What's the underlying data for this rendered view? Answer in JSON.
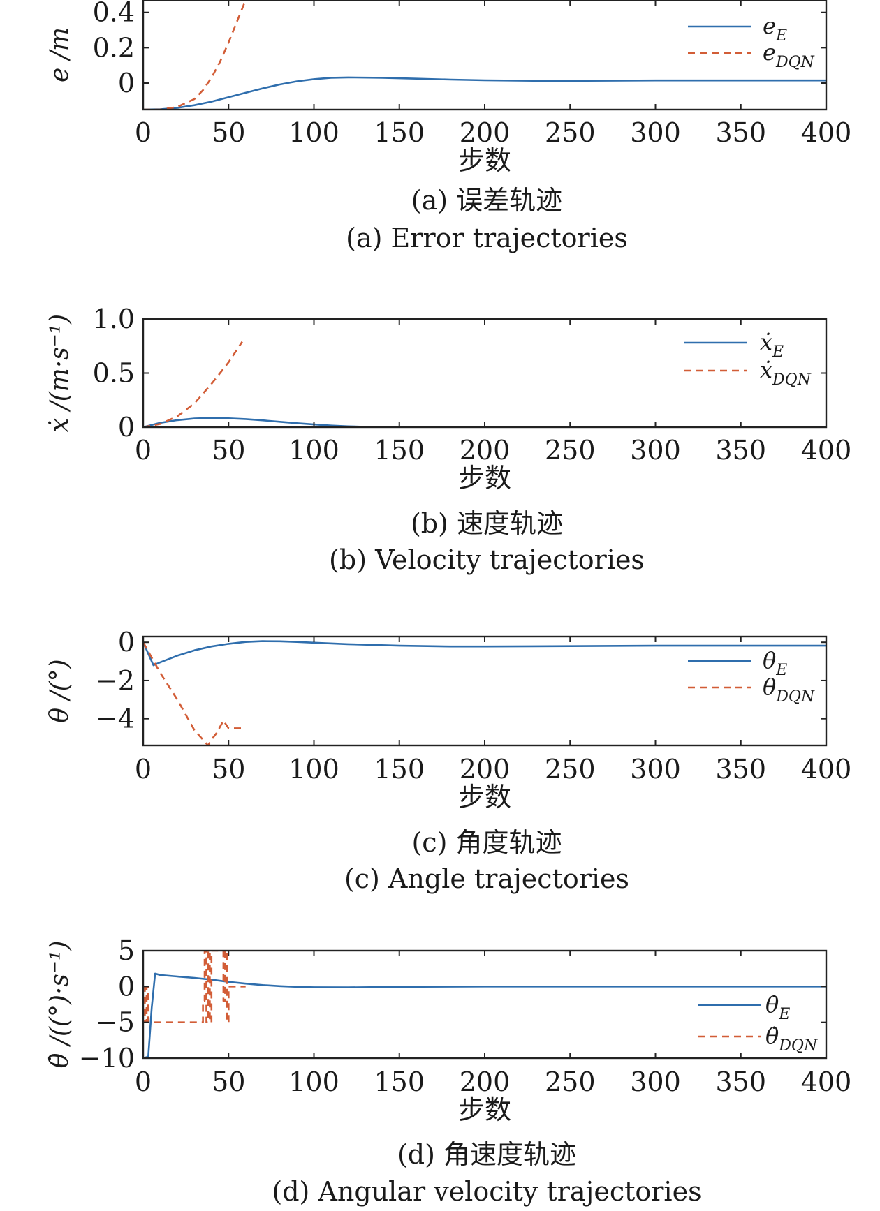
{
  "figure": {
    "panels": [
      {
        "id": "a",
        "xlabel": "步数",
        "ylabel": "e /m",
        "caption_cn": "(a) 误差轨迹",
        "caption_en": "(a) Error trajectories",
        "xticks": [
          "0",
          "50",
          "100",
          "150",
          "200",
          "250",
          "300",
          "350",
          "400"
        ],
        "yticks": [
          "0",
          "0.2",
          "0.4"
        ],
        "legend": [
          "e_E",
          "e_DQN"
        ]
      },
      {
        "id": "b",
        "xlabel": "步数",
        "ylabel": "ẋ /(m·s⁻¹)",
        "caption_cn": "(b) 速度轨迹",
        "caption_en": "(b) Velocity trajectories",
        "xticks": [
          "0",
          "50",
          "100",
          "150",
          "200",
          "250",
          "300",
          "350",
          "400"
        ],
        "yticks": [
          "0",
          "0.5",
          "1.0"
        ],
        "legend": [
          "ẋ_E",
          "ẋ_DQN"
        ]
      },
      {
        "id": "c",
        "xlabel": "步数",
        "ylabel": "θ /(°)",
        "caption_cn": "(c) 角度轨迹",
        "caption_en": "(c) Angle trajectories",
        "xticks": [
          "0",
          "50",
          "100",
          "150",
          "200",
          "250",
          "300",
          "350",
          "400"
        ],
        "yticks": [
          "−4",
          "−2",
          "0"
        ],
        "legend": [
          "θ_E",
          "θ_DQN"
        ]
      },
      {
        "id": "d",
        "xlabel": "步数",
        "ylabel": "θ̇ /((°)·s⁻¹)",
        "caption_cn": "(d) 角速度轨迹",
        "caption_en": "(d) Angular velocity trajectories",
        "xticks": [
          "0",
          "50",
          "100",
          "150",
          "200",
          "250",
          "300",
          "350",
          "400"
        ],
        "yticks": [
          "−10",
          "−5",
          "0",
          "5"
        ],
        "legend": [
          "θ̇_E",
          "θ̇_DQN"
        ]
      }
    ],
    "colors": {
      "E": "#2f6ead",
      "DQN": "#d25d37"
    }
  },
  "chart_data": [
    {
      "type": "line",
      "xlim": [
        0,
        400
      ],
      "ylim": [
        -0.15,
        0.47
      ],
      "series": [
        {
          "name": "e_E",
          "style": "solid",
          "x": [
            0,
            10,
            20,
            30,
            40,
            50,
            60,
            70,
            80,
            90,
            100,
            110,
            120,
            140,
            160,
            180,
            200,
            230,
            260,
            300,
            350,
            400
          ],
          "y": [
            -0.15,
            -0.148,
            -0.14,
            -0.125,
            -0.105,
            -0.08,
            -0.055,
            -0.03,
            -0.008,
            0.01,
            0.022,
            0.03,
            0.032,
            0.03,
            0.025,
            0.02,
            0.016,
            0.013,
            0.013,
            0.015,
            0.015,
            0.015
          ]
        },
        {
          "name": "e_DQN",
          "style": "dashed",
          "x": [
            0,
            10,
            20,
            30,
            35,
            40,
            45,
            50,
            55,
            60
          ],
          "y": [
            -0.15,
            -0.15,
            -0.135,
            -0.09,
            -0.04,
            0.03,
            0.12,
            0.23,
            0.35,
            0.47
          ]
        }
      ]
    },
    {
      "type": "line",
      "xlim": [
        0,
        400
      ],
      "ylim": [
        0,
        1.0
      ],
      "series": [
        {
          "name": "ẋ_E",
          "style": "solid",
          "x": [
            0,
            10,
            20,
            30,
            40,
            50,
            60,
            70,
            80,
            90,
            100,
            110,
            120,
            130,
            140,
            150,
            200,
            250,
            300,
            350,
            400
          ],
          "y": [
            0,
            0.04,
            0.065,
            0.08,
            0.085,
            0.082,
            0.075,
            0.063,
            0.05,
            0.037,
            0.025,
            0.015,
            0.008,
            0.003,
            0.001,
            0,
            0,
            0,
            0,
            0,
            0
          ]
        },
        {
          "name": "ẋ_DQN",
          "style": "dashed",
          "x": [
            0,
            10,
            20,
            30,
            40,
            50,
            58
          ],
          "y": [
            0,
            0.03,
            0.1,
            0.22,
            0.4,
            0.6,
            0.79
          ]
        }
      ]
    },
    {
      "type": "line",
      "xlim": [
        0,
        400
      ],
      "ylim": [
        -5.4,
        0.3
      ],
      "series": [
        {
          "name": "θ_E",
          "style": "solid",
          "x": [
            0,
            6,
            10,
            20,
            30,
            40,
            50,
            60,
            70,
            80,
            90,
            100,
            120,
            150,
            180,
            200,
            250,
            300,
            350,
            400
          ],
          "y": [
            0,
            -1.2,
            -1.05,
            -0.7,
            -0.42,
            -0.22,
            -0.08,
            0.02,
            0.06,
            0.05,
            0.02,
            -0.02,
            -0.1,
            -0.18,
            -0.22,
            -0.22,
            -0.2,
            -0.18,
            -0.18,
            -0.18
          ]
        },
        {
          "name": "θ_DQN",
          "style": "dashed",
          "x": [
            0,
            10,
            20,
            30,
            35,
            38,
            40,
            43,
            47,
            50,
            53,
            60
          ],
          "y": [
            0,
            -1.6,
            -3.0,
            -4.6,
            -5.1,
            -5.4,
            -5.1,
            -4.75,
            -4.1,
            -4.5,
            -4.5,
            -4.5
          ]
        }
      ]
    },
    {
      "type": "line",
      "xlim": [
        0,
        400
      ],
      "ylim": [
        -10,
        5
      ],
      "series": [
        {
          "name": "θ̇_E",
          "style": "solid",
          "x": [
            0,
            3,
            5,
            7,
            10,
            20,
            30,
            40,
            50,
            60,
            70,
            80,
            90,
            100,
            120,
            150,
            200,
            250,
            300,
            350,
            400
          ],
          "y": [
            -10,
            -9.8,
            -3,
            1.8,
            1.6,
            1.4,
            1.2,
            0.95,
            0.65,
            0.4,
            0.2,
            0.05,
            -0.05,
            -0.1,
            -0.12,
            -0.05,
            0,
            0,
            0,
            0,
            0
          ]
        },
        {
          "name": "θ̇_DQN",
          "style": "dashed",
          "x": [
            0,
            1,
            1,
            2,
            2,
            3,
            3,
            35,
            35,
            36,
            36,
            37,
            37,
            38,
            38,
            39,
            39,
            40,
            40,
            41,
            41,
            47,
            47,
            48,
            48,
            49,
            49,
            50,
            50,
            51,
            51,
            55,
            60
          ],
          "y": [
            0,
            0,
            -5,
            -5,
            0,
            0,
            -5,
            -5,
            -2,
            -2,
            5,
            5,
            -5,
            -5,
            5,
            5,
            -5,
            -5,
            5,
            5,
            5,
            5,
            -2,
            -2,
            5,
            5,
            -5,
            -5,
            0,
            0,
            0,
            0,
            0
          ]
        }
      ]
    }
  ]
}
